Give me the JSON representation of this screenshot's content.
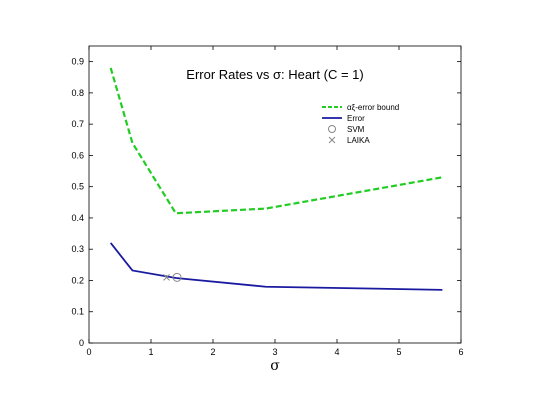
{
  "chart_data": {
    "type": "line",
    "title": "Error Rates vs σ: Heart (C = 1)",
    "xlabel": "σ",
    "ylabel": "",
    "xlim": [
      0,
      6
    ],
    "ylim": [
      0,
      0.95
    ],
    "grid": false,
    "legend_position": "top-right",
    "xticks": [
      0,
      1,
      2,
      3,
      4,
      5,
      6
    ],
    "xtick_labels": [
      "0",
      "1",
      "2",
      "3",
      "4",
      "5",
      "6"
    ],
    "yticks": [
      0,
      0.1,
      0.2,
      0.3,
      0.4,
      0.5,
      0.6,
      0.7,
      0.8,
      0.9
    ],
    "ytick_labels": [
      "0",
      "0.1",
      "0.2",
      "0.3",
      "0.4",
      "0.5",
      "0.6",
      "0.7",
      "0.8",
      "0.9"
    ],
    "series": [
      {
        "name": "αξ-error bound",
        "style": "dashed-line",
        "color": "#22cc22",
        "x": [
          0.35,
          0.7,
          1.4,
          2.85,
          5.7
        ],
        "y": [
          0.88,
          0.64,
          0.415,
          0.43,
          0.53
        ]
      },
      {
        "name": "Error",
        "style": "solid-line",
        "color": "#1a1aa0",
        "x": [
          0.35,
          0.7,
          1.4,
          2.85,
          5.7
        ],
        "y": [
          0.32,
          0.232,
          0.208,
          0.18,
          0.17
        ]
      },
      {
        "name": "SVM",
        "style": "circle-marker",
        "color": "#888888",
        "x": [
          1.42
        ],
        "y": [
          0.21
        ]
      },
      {
        "name": "LAIKA",
        "style": "x-marker",
        "color": "#888888",
        "x": [
          1.25
        ],
        "y": [
          0.21
        ]
      }
    ]
  }
}
